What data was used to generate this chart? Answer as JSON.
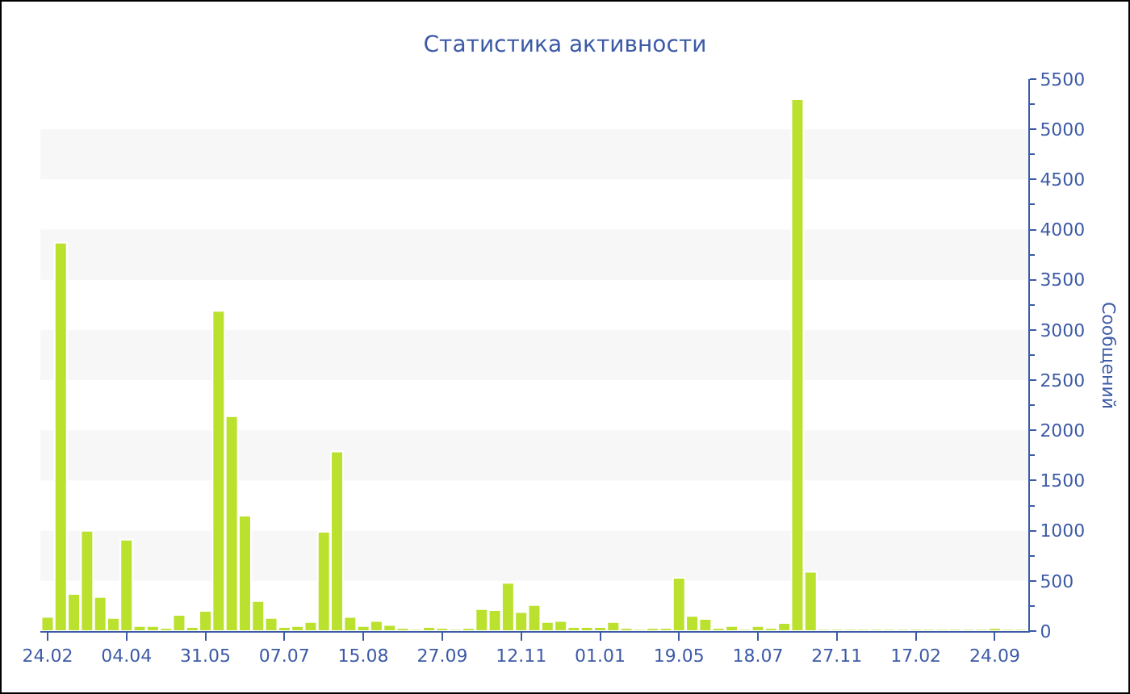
{
  "chart_data": {
    "type": "bar",
    "title": "Статистика активности",
    "ylabel": "Сообщений",
    "categories": [
      "24.02",
      null,
      null,
      null,
      null,
      null,
      "04.04",
      null,
      null,
      null,
      null,
      null,
      "31.05",
      null,
      null,
      null,
      null,
      null,
      "07.07",
      null,
      null,
      null,
      null,
      null,
      "15.08",
      null,
      null,
      null,
      null,
      null,
      "27.09",
      null,
      null,
      null,
      null,
      null,
      "12.11",
      null,
      null,
      null,
      null,
      null,
      "01.01",
      null,
      null,
      null,
      null,
      null,
      "19.05",
      null,
      null,
      null,
      null,
      null,
      "18.07",
      null,
      null,
      null,
      null,
      null,
      "27.11",
      null,
      null,
      null,
      null,
      null,
      "17.02",
      null,
      null,
      null,
      null,
      null,
      "24.09",
      null,
      null
    ],
    "values": [
      140,
      3870,
      370,
      1000,
      340,
      130,
      910,
      50,
      50,
      30,
      160,
      40,
      200,
      3190,
      2140,
      1150,
      300,
      130,
      40,
      50,
      90,
      990,
      1790,
      140,
      50,
      100,
      60,
      30,
      20,
      40,
      30,
      20,
      30,
      220,
      210,
      480,
      190,
      260,
      90,
      100,
      40,
      40,
      40,
      90,
      30,
      20,
      30,
      30,
      530,
      150,
      120,
      30,
      50,
      20,
      50,
      30,
      80,
      5300,
      590,
      20,
      20,
      20,
      20,
      20,
      20,
      20,
      20,
      20,
      20,
      20,
      20,
      20,
      30,
      20,
      20
    ],
    "color": "#bbe12f",
    "ylim": [
      0,
      5500
    ],
    "yticks": [
      0,
      500,
      1000,
      1500,
      2000,
      2500,
      3000,
      3500,
      4000,
      4500,
      5000,
      5500
    ],
    "bands": [
      {
        "axis": "y",
        "from": 500,
        "to": 1000,
        "color": "#f7f7f7"
      },
      {
        "axis": "y",
        "from": 1500,
        "to": 2000,
        "color": "#f7f7f7"
      },
      {
        "axis": "y",
        "from": 2500,
        "to": 3000,
        "color": "#f7f7f7"
      },
      {
        "axis": "y",
        "from": 3500,
        "to": 4000,
        "color": "#f7f7f7"
      },
      {
        "axis": "y",
        "from": 4500,
        "to": 5000,
        "color": "#f7f7f7"
      }
    ]
  }
}
